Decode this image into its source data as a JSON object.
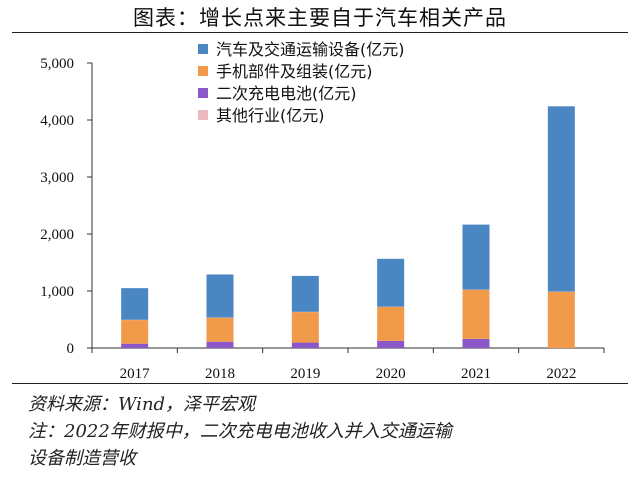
{
  "title": "图表：增长点来主要自于汽车相关产品",
  "footer": {
    "source": "资料来源：Wind，泽平宏观",
    "note_line1": "注：2022年财报中，二次充电电池收入并入交通运输",
    "note_line2": "设备制造营收"
  },
  "chart_data": {
    "type": "bar",
    "stacked": true,
    "categories": [
      "2017",
      "2018",
      "2019",
      "2020",
      "2021",
      "2022"
    ],
    "series": [
      {
        "name": "汽车及交通运输设备(亿元)",
        "color": "#4A86C1",
        "values": [
          555,
          755,
          630,
          840,
          1140,
          3250
        ]
      },
      {
        "name": "手机部件及组装(亿元)",
        "color": "#F09A4A",
        "values": [
          415,
          420,
          535,
          595,
          860,
          985
        ]
      },
      {
        "name": "二次充电电池(亿元)",
        "color": "#8B57C9",
        "values": [
          75,
          110,
          95,
          125,
          160,
          0
        ]
      },
      {
        "name": "其他行业(亿元)",
        "color": "#EDB8BE",
        "values": [
          5,
          5,
          5,
          5,
          5,
          5
        ]
      }
    ],
    "ylim": [
      0,
      5000
    ],
    "yticks": [
      0,
      1000,
      2000,
      3000,
      4000,
      5000
    ],
    "ytick_labels": [
      "0",
      "1,000",
      "2,000",
      "3,000",
      "4,000",
      "5,000"
    ],
    "legend_position": "top-center",
    "grid": false
  }
}
